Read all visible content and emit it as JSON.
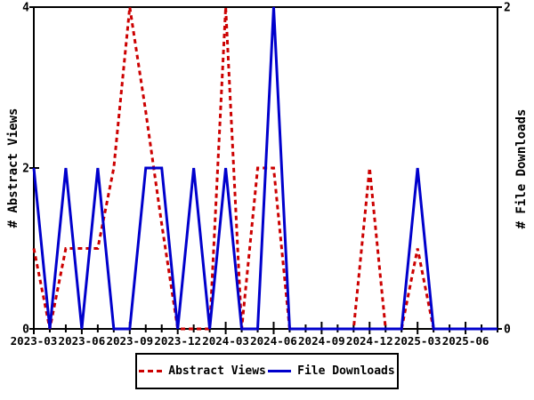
{
  "chart_data": {
    "type": "line",
    "x": [
      "2023-03",
      "2023-04",
      "2023-05",
      "2023-06",
      "2023-07",
      "2023-08",
      "2023-09",
      "2023-10",
      "2023-11",
      "2023-12",
      "2024-01",
      "2024-02",
      "2024-03",
      "2024-04",
      "2024-05",
      "2024-06",
      "2024-07",
      "2024-08",
      "2024-09",
      "2024-10",
      "2024-11",
      "2024-12",
      "2025-01",
      "2025-02",
      "2025-03",
      "2025-04",
      "2025-05",
      "2025-06",
      "2025-07",
      "2025-08"
    ],
    "x_major_tick_labels": [
      "2023-03",
      "2023-06",
      "2023-09",
      "2023-12",
      "2024-03",
      "2024-06",
      "2024-09",
      "2024-12",
      "2025-03",
      "2025-06"
    ],
    "series": [
      {
        "name": "Abstract Views",
        "axis": "left",
        "color": "#cc0000",
        "style": "dashed",
        "values": [
          1,
          0,
          1,
          1,
          1,
          2,
          4,
          2.7,
          1.3,
          0,
          0,
          0,
          4,
          0,
          2,
          2,
          0,
          0,
          0,
          0,
          0,
          2,
          0,
          0,
          1,
          0,
          0,
          0,
          0,
          0
        ]
      },
      {
        "name": "File Downloads",
        "axis": "right",
        "color": "#0000cc",
        "style": "solid",
        "values": [
          1,
          0,
          1,
          0,
          1,
          0,
          0,
          1,
          1,
          0,
          1,
          0,
          1,
          0,
          0,
          2,
          0,
          0,
          0,
          0,
          0,
          0,
          0,
          0,
          1,
          0,
          0,
          0,
          0,
          0
        ]
      }
    ],
    "left_axis": {
      "label": "# Abstract Views",
      "min": 0,
      "max": 4,
      "ticks": [
        0,
        2,
        4
      ]
    },
    "right_axis": {
      "label": "# File Downloads",
      "min": 0,
      "max": 2,
      "ticks": [
        0,
        2
      ]
    },
    "legend": {
      "position": "bottom",
      "entries": [
        "Abstract Views",
        "File Downloads"
      ]
    },
    "grid": false,
    "title": ""
  },
  "colors": {
    "abstract_views": "#cc0000",
    "file_downloads": "#0000cc",
    "frame": "#000000",
    "background": "#ffffff",
    "text": "#000000"
  }
}
